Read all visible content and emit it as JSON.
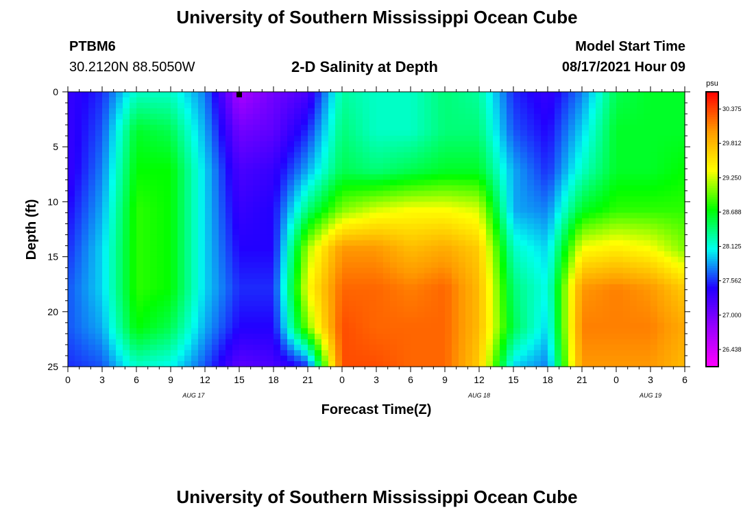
{
  "header": {
    "title": "University of Southern Mississippi Ocean Cube",
    "station": "PTBM6",
    "location": "30.2120N  88.5050W",
    "chart_title": "2-D Salinity at Depth",
    "model_label": "Model Start Time",
    "model_time": "08/17/2021 Hour 09"
  },
  "footer": {
    "title": "University of Southern Mississippi Ocean Cube"
  },
  "colors": {
    "background": "#ffffff",
    "marker": "#000000",
    "scale": [
      "#ff00ff",
      "#9900ff",
      "#2200ff",
      "#00ffee",
      "#00ff00",
      "#ffff00",
      "#ff9900",
      "#ff0000"
    ]
  },
  "chart_data": {
    "type": "heatmap",
    "xlabel": "Forecast Time(Z)",
    "ylabel": "Depth (ft)",
    "x_range_hours": [
      0,
      54
    ],
    "y_range": [
      0,
      25
    ],
    "y_ticks": [
      0,
      5,
      10,
      15,
      20,
      25
    ],
    "x_ticks": [
      "0",
      "3",
      "6",
      "9",
      "12",
      "15",
      "18",
      "21",
      "0",
      "3",
      "6",
      "9",
      "12",
      "15",
      "18",
      "21",
      "0",
      "3",
      "6"
    ],
    "date_labels": [
      {
        "label": "AUG 17",
        "hour": 11
      },
      {
        "label": "AUG 18",
        "hour": 36
      },
      {
        "label": "AUG 19",
        "hour": 51
      }
    ],
    "colorbar": {
      "unit": "psu",
      "labels": [
        "30.375",
        "29.812",
        "29.250",
        "28.688",
        "28.125",
        "27.562",
        "27.000",
        "26.438"
      ],
      "range": [
        26.3,
        30.5
      ]
    },
    "current_time_hour": 15,
    "salinity_psu": [
      {
        "hour": 0,
        "depth": [
          27.4,
          27.4,
          27.4,
          27.5,
          27.6,
          27.7,
          27.7,
          27.6
        ]
      },
      {
        "hour": 3,
        "depth": [
          27.6,
          27.7,
          27.8,
          27.9,
          28.0,
          28.0,
          27.9,
          27.7
        ]
      },
      {
        "hour": 6,
        "depth": [
          28.2,
          28.6,
          28.7,
          28.8,
          28.8,
          28.8,
          28.7,
          28.2
        ]
      },
      {
        "hour": 9,
        "depth": [
          28.2,
          28.5,
          28.7,
          28.7,
          28.7,
          28.7,
          28.5,
          28.1
        ]
      },
      {
        "hour": 12,
        "depth": [
          27.8,
          27.9,
          28.0,
          28.0,
          28.0,
          28.0,
          27.9,
          27.7
        ]
      },
      {
        "hour": 15,
        "depth": [
          26.8,
          27.1,
          27.3,
          27.4,
          27.5,
          27.6,
          27.5,
          27.2
        ]
      },
      {
        "hour": 18,
        "depth": [
          27.1,
          27.2,
          27.4,
          27.5,
          27.5,
          27.6,
          27.5,
          27.3
        ]
      },
      {
        "hour": 21,
        "depth": [
          27.3,
          27.6,
          27.9,
          28.4,
          29.1,
          29.3,
          29.0,
          27.6
        ]
      },
      {
        "hour": 24,
        "depth": [
          28.3,
          28.4,
          28.5,
          29.0,
          29.9,
          30.1,
          30.2,
          30.2
        ]
      },
      {
        "hour": 27,
        "depth": [
          28.2,
          28.2,
          28.4,
          29.2,
          29.9,
          30.1,
          30.1,
          30.2
        ]
      },
      {
        "hour": 30,
        "depth": [
          28.2,
          28.2,
          28.5,
          29.3,
          29.7,
          30.0,
          30.1,
          30.1
        ]
      },
      {
        "hour": 33,
        "depth": [
          28.4,
          28.4,
          28.6,
          29.3,
          29.8,
          30.1,
          30.1,
          30.1
        ]
      },
      {
        "hour": 36,
        "depth": [
          28.3,
          28.4,
          28.6,
          29.2,
          29.6,
          29.7,
          29.7,
          29.6
        ]
      },
      {
        "hour": 39,
        "depth": [
          27.6,
          27.7,
          27.9,
          27.9,
          28.2,
          28.4,
          28.5,
          28.0
        ]
      },
      {
        "hour": 42,
        "depth": [
          27.4,
          27.5,
          27.6,
          27.8,
          28.0,
          28.1,
          28.0,
          27.8
        ]
      },
      {
        "hour": 45,
        "depth": [
          27.8,
          28.0,
          28.2,
          28.6,
          29.3,
          29.9,
          30.0,
          29.9
        ]
      },
      {
        "hour": 48,
        "depth": [
          28.5,
          28.6,
          28.6,
          28.8,
          29.4,
          30.0,
          30.0,
          29.9
        ]
      },
      {
        "hour": 51,
        "depth": [
          28.6,
          28.6,
          28.6,
          28.8,
          29.3,
          29.9,
          30.0,
          29.9
        ]
      },
      {
        "hour": 54,
        "depth": [
          28.6,
          28.6,
          28.7,
          28.8,
          29.0,
          29.6,
          29.8,
          29.7
        ]
      }
    ]
  }
}
